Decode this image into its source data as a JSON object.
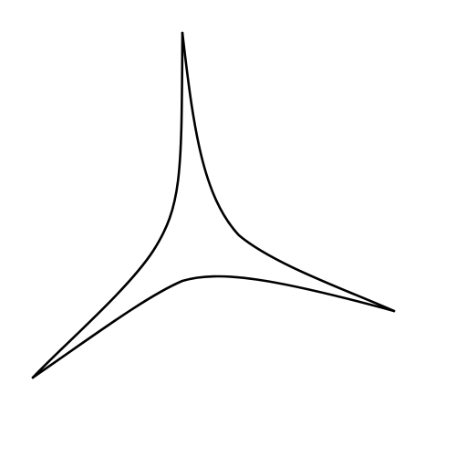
{
  "figure": {
    "shape": "three-cusped curvilinear triangle (deltoid-like)",
    "background_color": "#ffffff",
    "stroke_color": "#000000"
  }
}
